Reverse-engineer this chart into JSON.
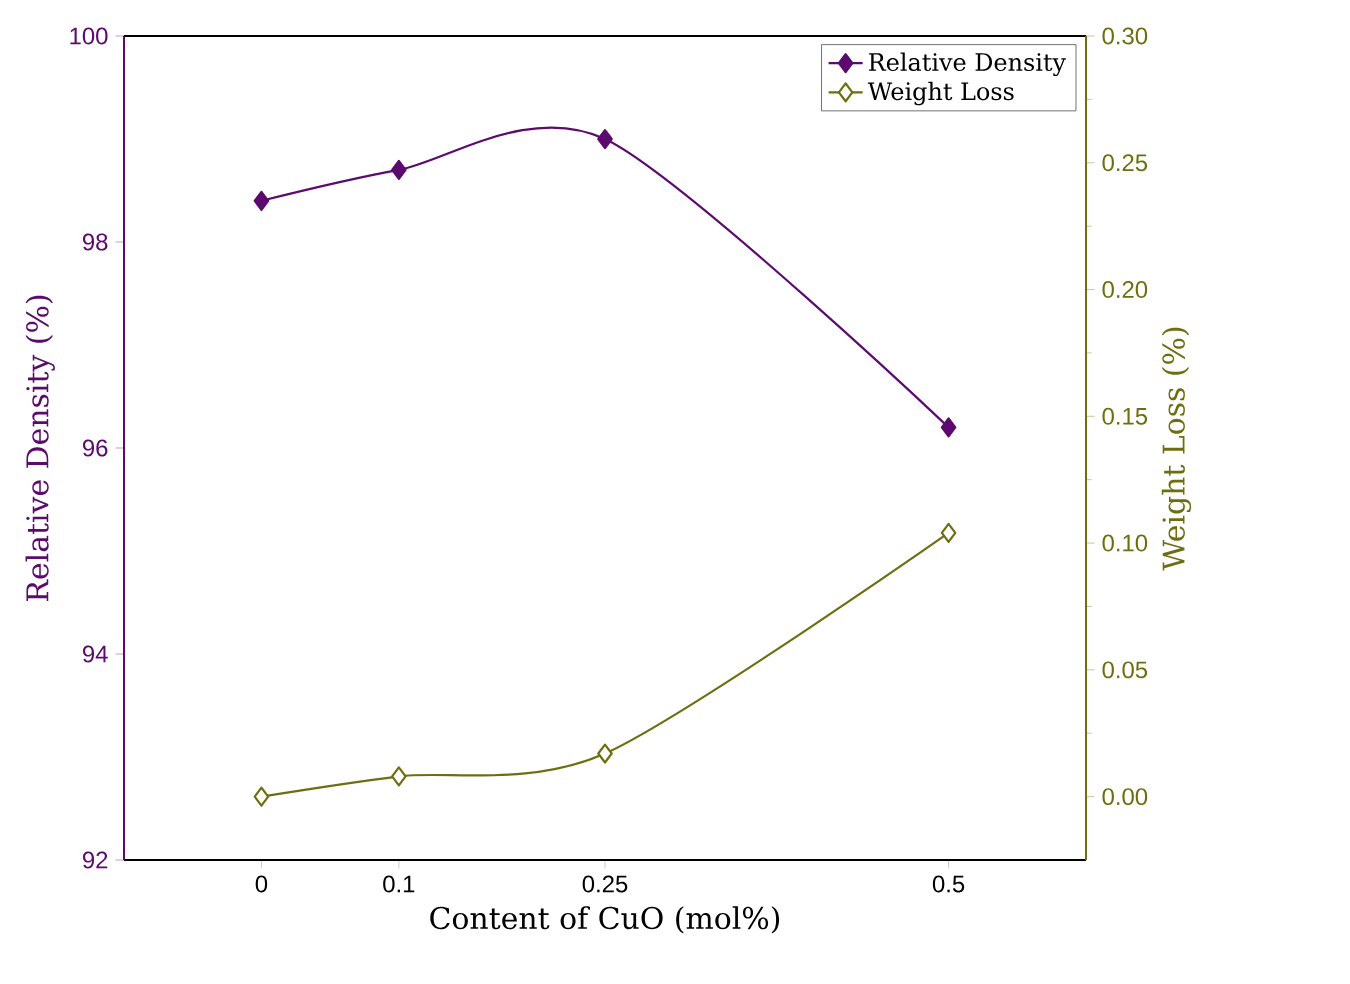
{
  "chart_data": {
    "type": "line",
    "xlabel": "Content of CuO (mol%)",
    "ylabel": "Relative Density (%)",
    "y2label": "Weight Loss (%)",
    "x": [
      0,
      0.1,
      0.25,
      0.5
    ],
    "xlim": [
      -0.1,
      0.6
    ],
    "xticks": [
      0,
      0.1,
      0.25,
      0.5
    ],
    "ylim": [
      92,
      100
    ],
    "yticks": [
      92,
      94,
      96,
      98,
      100
    ],
    "y2lim": [
      -0.025,
      0.3
    ],
    "y2ticks": [
      {
        "value": 0,
        "label": "0.00"
      },
      {
        "value": 0.05,
        "label": "0.05"
      },
      {
        "value": 0.1,
        "label": "0.10"
      },
      {
        "value": 0.15,
        "label": "0.15"
      },
      {
        "value": 0.2,
        "label": "0.20"
      },
      {
        "value": 0.25,
        "label": "0.25"
      },
      {
        "value": 0.3,
        "label": "0.30"
      }
    ],
    "series": [
      {
        "name": "Relative Density",
        "color": "#5c0a6e",
        "values": [
          98.4,
          98.7,
          99.0,
          96.2
        ]
      },
      {
        "name": "Weight Loss",
        "color": "#6e6e10",
        "axis": "y2",
        "values": [
          0,
          0.008,
          0.017,
          0.104
        ]
      }
    ],
    "marker": "diamond",
    "line_style": "solid",
    "legend": "top right",
    "grid": false
  }
}
